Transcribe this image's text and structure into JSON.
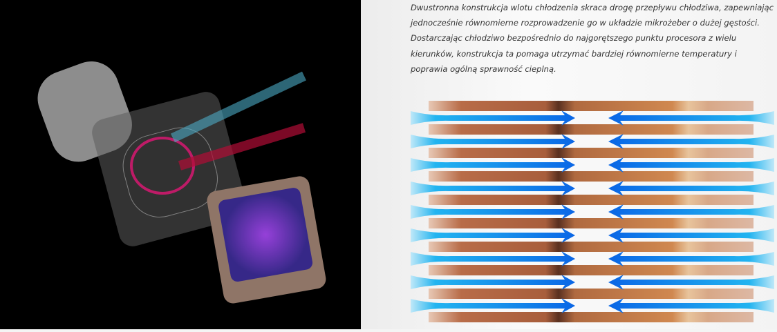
{
  "product_image": {
    "alt_subject": "cooler-pump-exploded-view"
  },
  "description": "Dwustronna konstrukcja wlotu chłodzenia skraca drogę przepływu chłodziwa, zapewniając jednocześnie równomierne rozprowadzenie go w układzie mikrożeber o dużej gęstości. Dostarczając chłodziwo bezpośrednio do najgorętszego punktu procesora z wielu kierunków, konstrukcja ta pomaga utrzymać bardziej równomierne temperatury i poprawia ogólną sprawność cieplną.",
  "diagram": {
    "fin_count": 10,
    "flow_rows": 9,
    "colors": {
      "copper": "#c47a48",
      "copper_dark": "#5a3020",
      "flow_blue": "#0a6ee8",
      "flow_light": "#29b6f0"
    }
  }
}
